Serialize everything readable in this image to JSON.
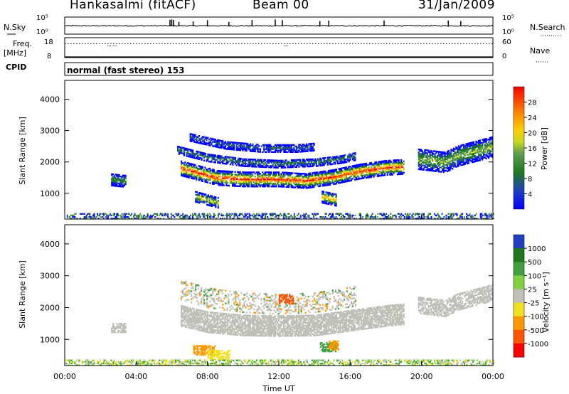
{
  "header": {
    "station": "Hankasalmi (fitACF)",
    "beam": "Beam 00",
    "date": "31/Jan/2009"
  },
  "chart_data": [
    {
      "type": "line",
      "panel": "noise",
      "left_label": "N.Sky",
      "right_label": "N.Search",
      "left_ticks": [
        "10^5",
        "10^0"
      ],
      "right_ticks": [
        "10^5",
        "10^0"
      ],
      "series": [
        {
          "name": "N.Sky",
          "style": "solid",
          "color": "#000000",
          "baseline_exponent": 3.6,
          "spikes_hour": [
            5.9,
            6.0,
            6.1,
            6.4,
            7.2,
            8.0,
            9.2,
            10.5,
            11.8,
            12.2,
            14.3,
            14.8,
            17.9,
            21.5,
            22.2
          ]
        }
      ]
    },
    {
      "type": "line",
      "panel": "frequency",
      "left_label": "Freq.",
      "left_unit": "[MHz]",
      "right_label": "Nave",
      "left_ticks": [
        "18",
        "8"
      ],
      "right_ticks": [
        "60",
        "0"
      ],
      "ylim_freq": [
        8,
        18
      ],
      "ylim_nave": [
        0,
        60
      ],
      "series": [
        {
          "name": "Freq.",
          "style": "solid",
          "value_mhz": 10.5
        },
        {
          "name": "Nave",
          "style": "dotted",
          "value": 42,
          "dips_hour": [
            2.4,
            2.7,
            12.3
          ]
        }
      ]
    },
    {
      "type": "text",
      "panel": "cpid",
      "label": "CPID",
      "value": "normal (fast stereo) 153"
    },
    {
      "type": "heatmap",
      "panel": "power",
      "ylabel": "Slant Range [km]",
      "yticks": [
        1000,
        2000,
        3000,
        4000
      ],
      "ylim": [
        180,
        4600
      ],
      "colorbar": {
        "label": "Power [dB]",
        "ticks": [
          "4",
          "8",
          "12",
          "16",
          "20",
          "24",
          "28"
        ],
        "colors": [
          "#0000ff",
          "#2040c0",
          "#1f7a1f",
          "#5a9a50",
          "#f0e020",
          "#ff9900",
          "#ff5500",
          "#ff0000"
        ]
      },
      "scatter_regions": [
        {
          "t0": 6.5,
          "t1": 19.0,
          "core": [
            [
              6.5,
              1800
            ],
            [
              7.5,
              1650
            ],
            [
              8.5,
              1500
            ],
            [
              10,
              1450
            ],
            [
              12,
              1450
            ],
            [
              13.5,
              1400
            ],
            [
              15,
              1520
            ],
            [
              16.5,
              1700
            ],
            [
              18,
              1820
            ],
            [
              19,
              1850
            ]
          ],
          "thickness_km": 350,
          "peak_db": 28
        },
        {
          "t0": 6.3,
          "t1": 16.3,
          "core": [
            [
              6.3,
              2400
            ],
            [
              8,
              2150
            ],
            [
              10,
              2000
            ],
            [
              12,
              1950
            ],
            [
              14,
              2000
            ],
            [
              15.5,
              2100
            ],
            [
              16.3,
              2200
            ]
          ],
          "thickness_km": 200,
          "peak_db": 10
        },
        {
          "t0": 7.0,
          "t1": 14.0,
          "core": [
            [
              7,
              2800
            ],
            [
              9,
              2550
            ],
            [
              11,
              2450
            ],
            [
              13,
              2450
            ],
            [
              14,
              2500
            ]
          ],
          "thickness_km": 200,
          "peak_db": 8
        },
        {
          "t0": 19.8,
          "t1": 24.0,
          "core": [
            [
              19.8,
              2100
            ],
            [
              21.3,
              2000
            ],
            [
              22,
              2200
            ],
            [
              23,
              2350
            ],
            [
              24,
              2500
            ]
          ],
          "thickness_km": 500,
          "peak_db": 16
        },
        {
          "t0": 2.6,
          "t1": 3.4,
          "core": [
            [
              2.6,
              1450
            ],
            [
              3.4,
              1400
            ]
          ],
          "thickness_km": 300,
          "peak_db": 12
        },
        {
          "t0": 7.3,
          "t1": 8.6,
          "core": [
            [
              7.3,
              900
            ],
            [
              8.6,
              700
            ]
          ],
          "thickness_km": 250,
          "peak_db": 18
        },
        {
          "t0": 14.4,
          "t1": 15.2,
          "core": [
            [
              14.4,
              900
            ],
            [
              15.2,
              800
            ]
          ],
          "thickness_km": 300,
          "peak_db": 22
        }
      ]
    },
    {
      "type": "heatmap",
      "panel": "velocity",
      "ylabel": "Slant Range [km]",
      "yticks": [
        1000,
        2000,
        3000,
        4000
      ],
      "ylim": [
        180,
        4600
      ],
      "xlabel": "Time UT",
      "xticks": [
        "00:00",
        "04:00",
        "08:00",
        "12:00",
        "16:00",
        "20:00",
        "00:00"
      ],
      "xlim_hours": [
        0,
        24
      ],
      "colorbar": {
        "label": "Velocity [m s^-1]",
        "ticks": [
          "1000",
          "500",
          "100",
          "25",
          "-25",
          "-100",
          "-500",
          "-1000"
        ],
        "colors": [
          "#2040c0",
          "#1f7a1f",
          "#40a040",
          "#80d040",
          "#c0c0b8",
          "#f0e020",
          "#ff9900",
          "#ff5500",
          "#ff0000"
        ]
      },
      "gray_band": [
        [
          6.5,
          1800
        ],
        [
          8,
          1600
        ],
        [
          10,
          1500
        ],
        [
          12,
          1480
        ],
        [
          14,
          1500
        ],
        [
          16,
          1650
        ],
        [
          18,
          1800
        ],
        [
          19,
          1850
        ]
      ]
    }
  ]
}
